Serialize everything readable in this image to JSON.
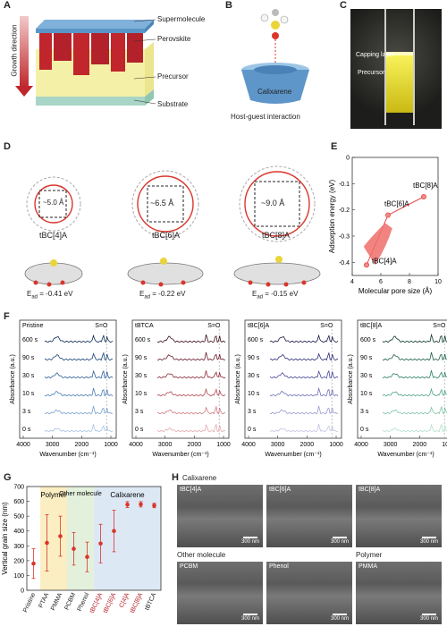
{
  "panels": {
    "A": {
      "label": "A",
      "growth": "Growth direction",
      "layers": [
        "Supermolecule",
        "Perovskite",
        "Precursor",
        "Substrate"
      ]
    },
    "B": {
      "label": "B",
      "host": "Calixarene",
      "caption": "Host-guest interaction"
    },
    "C": {
      "label": "C",
      "capping": "Capping layer",
      "precursor": "Precursor"
    },
    "D": {
      "label": "D",
      "molecules": [
        {
          "name": "tBC[4]A",
          "pore": "~5.0 Å",
          "ead": "= -0.41 eV"
        },
        {
          "name": "tBC[6]A",
          "pore": "~6.5 Å",
          "ead": "= -0.22 eV"
        },
        {
          "name": "tBC[8]A",
          "pore": "~9.0 Å",
          "ead": "= -0.15 eV"
        }
      ],
      "ead_symbol": "E",
      "ead_sub": "ad"
    },
    "E": {
      "label": "E"
    },
    "F": {
      "label": "F",
      "subpanels": [
        "Pristine",
        "tBTCA",
        "tBC[6]A",
        "tBC[8]A"
      ],
      "times": [
        "600 s",
        "90 s",
        "30 s",
        "10 s",
        "3 s",
        "0 s"
      ],
      "peak": "S=O",
      "ylabel": "Absorbance (a.u.)",
      "xlabel": "Wavenumber (cm⁻¹)",
      "xticks": [
        "4000",
        "3000",
        "2000",
        "1000"
      ]
    },
    "G": {
      "label": "G",
      "ylabel": "Vertical grain size (nm)",
      "groups": [
        "Polymer",
        "Other molecule",
        "Calixarene"
      ]
    },
    "H": {
      "label": "H",
      "group1": "Calixarene",
      "group2": "Other molecule",
      "group3": "Polymer",
      "images": [
        "tBC[4]A",
        "tBC[6]A",
        "tBC[8]A",
        "PCBM",
        "Phenol",
        "PMMA"
      ],
      "scale": "300 nm"
    }
  },
  "chart_data": [
    {
      "type": "line",
      "panel": "E",
      "xlabel": "Molecular pore size (Å)",
      "ylabel": "Adsorption energy (eV)",
      "x": [
        5.0,
        6.5,
        9.0
      ],
      "y": [
        -0.41,
        -0.22,
        -0.15
      ],
      "point_labels": [
        "tBC[4]A",
        "tBC[6]A",
        "tBC[8]A"
      ],
      "xlim": [
        4,
        10
      ],
      "ylim": [
        -0.45,
        0
      ],
      "xticks": [
        4,
        6,
        8,
        10
      ],
      "yticks": [
        0,
        -0.1,
        -0.2,
        -0.3,
        -0.4
      ],
      "color": "#e74c4c"
    },
    {
      "type": "scatter",
      "panel": "G",
      "ylabel": "Vertical grain size (nm)",
      "categories": [
        "Pristine",
        "PTAA",
        "PMMA",
        "PCBM",
        "Phenol",
        "tBC[4]A",
        "tBC[6]A",
        "C[4]A",
        "tBC[8]A",
        "tBTCA"
      ],
      "values": [
        180,
        320,
        365,
        280,
        225,
        315,
        400,
        578,
        580,
        572
      ],
      "err": [
        100,
        190,
        135,
        110,
        100,
        130,
        140,
        20,
        18,
        15
      ],
      "ylim": [
        0,
        700
      ],
      "yticks": [
        0,
        100,
        200,
        300,
        400,
        500,
        600,
        700
      ],
      "group_colors": {
        "Polymer": "#fbeec2",
        "Other molecule": "#e3f1dc",
        "Calixarene": "#dde8f5"
      },
      "color": "#d9362b"
    }
  ]
}
